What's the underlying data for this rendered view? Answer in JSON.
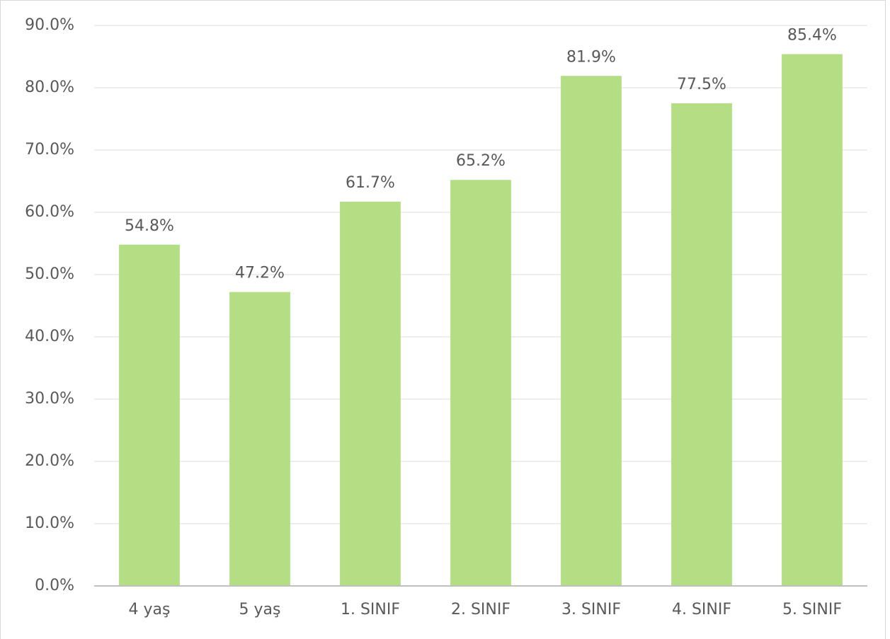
{
  "chart_data": {
    "type": "bar",
    "categories": [
      "4 yaş",
      "5 yaş",
      "1. SINIF",
      "2. SINIF",
      "3. SINIF",
      "4. SINIF",
      "5. SINIF"
    ],
    "values": [
      54.8,
      47.2,
      61.7,
      65.2,
      81.9,
      77.5,
      85.4
    ],
    "value_labels": [
      "54.8%",
      "47.2%",
      "61.7%",
      "65.2%",
      "81.9%",
      "77.5%",
      "85.4%"
    ],
    "color": "#b3de84",
    "ylim": [
      0,
      90
    ],
    "yticks": [
      {
        "value": 0,
        "label": "0.0%"
      },
      {
        "value": 10,
        "label": "10.0%"
      },
      {
        "value": 20,
        "label": "20.0%"
      },
      {
        "value": 30,
        "label": "30.0%"
      },
      {
        "value": 40,
        "label": "40.0%"
      },
      {
        "value": 50,
        "label": "50.0%"
      },
      {
        "value": 60,
        "label": "60.0%"
      },
      {
        "value": 70,
        "label": "70.0%"
      },
      {
        "value": 80,
        "label": "80.0%"
      },
      {
        "value": 90,
        "label": "90.0%"
      }
    ],
    "grid": true
  }
}
